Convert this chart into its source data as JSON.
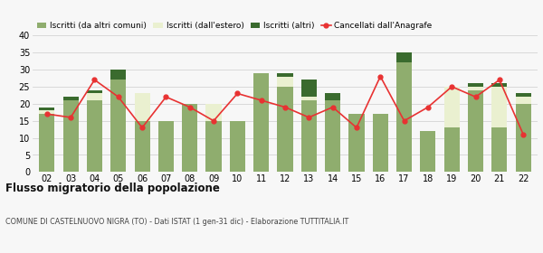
{
  "years": [
    "02",
    "03",
    "04",
    "05",
    "06",
    "07",
    "08",
    "09",
    "10",
    "11",
    "12",
    "13",
    "14",
    "15",
    "16",
    "17",
    "18",
    "19",
    "20",
    "21",
    "22"
  ],
  "iscritti_altri_comuni": [
    17,
    21,
    21,
    27,
    15,
    15,
    20,
    15,
    15,
    29,
    25,
    21,
    21,
    17,
    17,
    32,
    12,
    13,
    24,
    13,
    20
  ],
  "iscritti_estero": [
    1,
    0,
    2,
    0,
    8,
    0,
    0,
    5,
    0,
    0,
    3,
    1,
    0,
    0,
    0,
    0,
    0,
    12,
    1,
    12,
    2
  ],
  "iscritti_altri": [
    1,
    1,
    1,
    3,
    0,
    0,
    0,
    0,
    0,
    0,
    1,
    5,
    2,
    0,
    0,
    3,
    0,
    0,
    1,
    1,
    1
  ],
  "cancellati": [
    17,
    16,
    27,
    22,
    13,
    22,
    19,
    15,
    23,
    21,
    19,
    16,
    19,
    13,
    28,
    15,
    19,
    25,
    22,
    27,
    11
  ],
  "color_altri_comuni": "#8fad6e",
  "color_estero": "#eaf0d0",
  "color_altri": "#3a6b2e",
  "color_cancellati": "#e83232",
  "background_color": "#f7f7f7",
  "grid_color": "#cccccc",
  "title": "Flusso migratorio della popolazione",
  "subtitle": "COMUNE DI CASTELNUOVO NIGRA (TO) - Dati ISTAT (1 gen-31 dic) - Elaborazione TUTTITALIA.IT",
  "legend_labels": [
    "Iscritti (da altri comuni)",
    "Iscritti (dall'estero)",
    "Iscritti (altri)",
    "Cancellati dall'Anagrafe"
  ],
  "ylim": [
    0,
    40
  ],
  "yticks": [
    0,
    5,
    10,
    15,
    20,
    25,
    30,
    35,
    40
  ]
}
